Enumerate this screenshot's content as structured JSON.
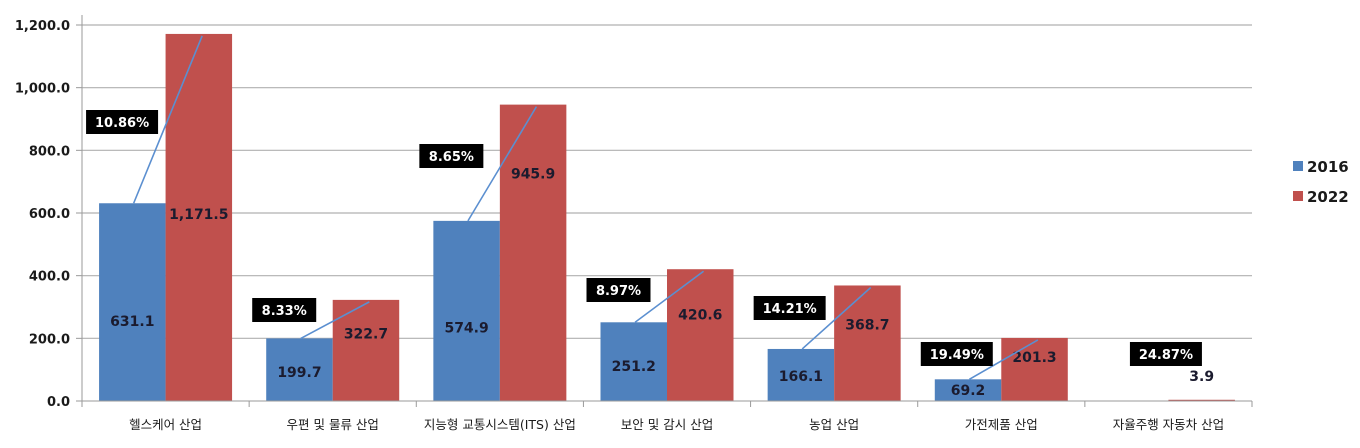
{
  "chart_data": {
    "type": "bar",
    "title": "",
    "xlabel": "",
    "ylabel": "",
    "ylim": [
      0,
      1200
    ],
    "yticks": [
      "0.0",
      "200.0",
      "400.0",
      "600.0",
      "800.0",
      "1,000.0",
      "1,200.0"
    ],
    "grid": true,
    "legend_position": "right",
    "categories": [
      "헬스케어 산업",
      "우편 및 물류 산업",
      "지능형 교통시스템(ITS) 산업",
      "보안 및 감시 산업",
      "농업 산업",
      "가전제품 산업",
      "자율주행 자동차 산업"
    ],
    "series": [
      {
        "name": "2016",
        "color": "#4f81bd",
        "values": [
          631.1,
          199.7,
          574.9,
          251.2,
          166.1,
          69.2,
          0
        ],
        "labels": [
          "631.1",
          "199.7",
          "574.9",
          "251.2",
          "166.1",
          "69.2",
          ""
        ]
      },
      {
        "name": "2022",
        "color": "#c0504d",
        "values": [
          1171.5,
          322.7,
          945.9,
          420.6,
          368.7,
          201.3,
          3.9
        ],
        "labels": [
          "1,171.5",
          "322.7",
          "945.9",
          "420.6",
          "368.7",
          "201.3",
          "3.9"
        ]
      }
    ],
    "annotations": {
      "type": "CAGR growth arrows",
      "line_color": "#5b8fd0",
      "values": [
        "10.86%",
        "8.33%",
        "8.65%",
        "8.97%",
        "14.21%",
        "19.49%",
        "24.87%"
      ]
    }
  }
}
